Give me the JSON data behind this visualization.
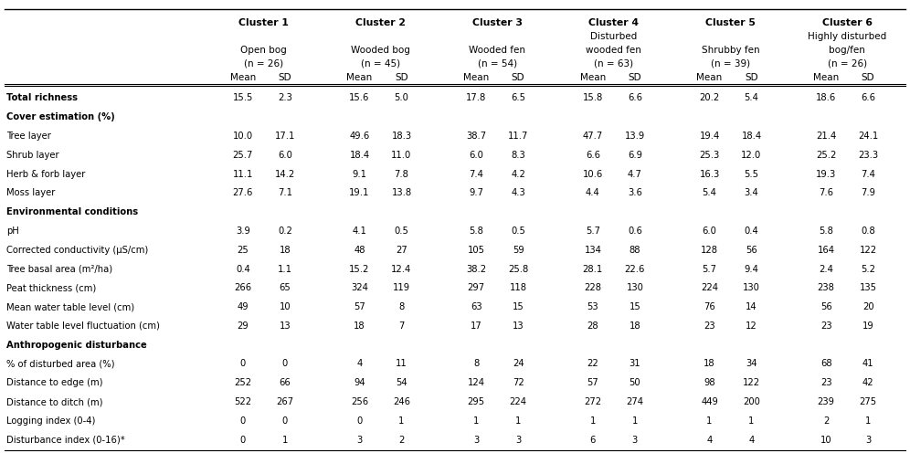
{
  "cluster_headers": [
    "Cluster 1",
    "Cluster 2",
    "Cluster 3",
    "Cluster 4",
    "Cluster 5",
    "Cluster 6"
  ],
  "cluster_line2": [
    "",
    "",
    "",
    "Disturbed",
    "",
    "Highly disturbed"
  ],
  "cluster_subheaders": [
    "Open bog",
    "Wooded bog",
    "Wooded fen",
    "wooded fen",
    "Shrubby fen",
    "bog/fen"
  ],
  "cluster_n": [
    "(n = 26)",
    "(n = 45)",
    "(n = 54)",
    "(n = 63)",
    "(n = 39)",
    "(n = 26)"
  ],
  "cluster4_bold": [
    false,
    false,
    false,
    true,
    false,
    false
  ],
  "row_categories": [
    {
      "label": "Total richness",
      "bold": true,
      "section_header": false
    },
    {
      "label": "Cover estimation (%)",
      "bold": true,
      "section_header": true
    },
    {
      "label": "Tree layer",
      "bold": false,
      "section_header": false
    },
    {
      "label": "Shrub layer",
      "bold": false,
      "section_header": false
    },
    {
      "label": "Herb & forb layer",
      "bold": false,
      "section_header": false
    },
    {
      "label": "Moss layer",
      "bold": false,
      "section_header": false
    },
    {
      "label": "Environmental conditions",
      "bold": true,
      "section_header": true
    },
    {
      "label": "pH",
      "bold": false,
      "section_header": false
    },
    {
      "label": "Corrected conductivity (μS/cm)",
      "bold": false,
      "section_header": false
    },
    {
      "label": "Tree basal area (m²/ha)",
      "bold": false,
      "section_header": false
    },
    {
      "label": "Peat thickness (cm)",
      "bold": false,
      "section_header": false
    },
    {
      "label": "Mean water table level (cm)",
      "bold": false,
      "section_header": false
    },
    {
      "label": "Water table level fluctuation (cm)",
      "bold": false,
      "section_header": false
    },
    {
      "label": "Anthropogenic disturbance",
      "bold": true,
      "section_header": true
    },
    {
      "label": "% of disturbed area (%)",
      "bold": false,
      "section_header": false
    },
    {
      "label": "Distance to edge (m)",
      "bold": false,
      "section_header": false
    },
    {
      "label": "Distance to ditch (m)",
      "bold": false,
      "section_header": false
    },
    {
      "label": "Logging index (0-4)",
      "bold": false,
      "section_header": false
    },
    {
      "label": "Disturbance index (0-16)*",
      "bold": false,
      "section_header": false
    }
  ],
  "data": [
    [
      "15.5",
      "2.3",
      "15.6",
      "5.0",
      "17.8",
      "6.5",
      "15.8",
      "6.6",
      "20.2",
      "5.4",
      "18.6",
      "6.6"
    ],
    [
      "",
      "",
      "",
      "",
      "",
      "",
      "",
      "",
      "",
      "",
      "",
      ""
    ],
    [
      "10.0",
      "17.1",
      "49.6",
      "18.3",
      "38.7",
      "11.7",
      "47.7",
      "13.9",
      "19.4",
      "18.4",
      "21.4",
      "24.1"
    ],
    [
      "25.7",
      "6.0",
      "18.4",
      "11.0",
      "6.0",
      "8.3",
      "6.6",
      "6.9",
      "25.3",
      "12.0",
      "25.2",
      "23.3"
    ],
    [
      "11.1",
      "14.2",
      "9.1",
      "7.8",
      "7.4",
      "4.2",
      "10.6",
      "4.7",
      "16.3",
      "5.5",
      "19.3",
      "7.4"
    ],
    [
      "27.6",
      "7.1",
      "19.1",
      "13.8",
      "9.7",
      "4.3",
      "4.4",
      "3.6",
      "5.4",
      "3.4",
      "7.6",
      "7.9"
    ],
    [
      "",
      "",
      "",
      "",
      "",
      "",
      "",
      "",
      "",
      "",
      "",
      ""
    ],
    [
      "3.9",
      "0.2",
      "4.1",
      "0.5",
      "5.8",
      "0.5",
      "5.7",
      "0.6",
      "6.0",
      "0.4",
      "5.8",
      "0.8"
    ],
    [
      "25",
      "18",
      "48",
      "27",
      "105",
      "59",
      "134",
      "88",
      "128",
      "56",
      "164",
      "122"
    ],
    [
      "0.4",
      "1.1",
      "15.2",
      "12.4",
      "38.2",
      "25.8",
      "28.1",
      "22.6",
      "5.7",
      "9.4",
      "2.4",
      "5.2"
    ],
    [
      "266",
      "65",
      "324",
      "119",
      "297",
      "118",
      "228",
      "130",
      "224",
      "130",
      "238",
      "135"
    ],
    [
      "49",
      "10",
      "57",
      "8",
      "63",
      "15",
      "53",
      "15",
      "76",
      "14",
      "56",
      "20"
    ],
    [
      "29",
      "13",
      "18",
      "7",
      "17",
      "13",
      "28",
      "18",
      "23",
      "12",
      "23",
      "19"
    ],
    [
      "",
      "",
      "",
      "",
      "",
      "",
      "",
      "",
      "",
      "",
      "",
      ""
    ],
    [
      "0",
      "0",
      "4",
      "11",
      "8",
      "24",
      "22",
      "31",
      "18",
      "34",
      "68",
      "41"
    ],
    [
      "252",
      "66",
      "94",
      "54",
      "124",
      "72",
      "57",
      "50",
      "98",
      "122",
      "23",
      "42"
    ],
    [
      "522",
      "267",
      "256",
      "246",
      "295",
      "224",
      "272",
      "274",
      "449",
      "200",
      "239",
      "275"
    ],
    [
      "0",
      "0",
      "0",
      "1",
      "1",
      "1",
      "1",
      "1",
      "1",
      "1",
      "2",
      "1"
    ],
    [
      "0",
      "1",
      "3",
      "2",
      "3",
      "3",
      "6",
      "3",
      "4",
      "4",
      "10",
      "3"
    ]
  ],
  "bg_color": "#ffffff",
  "text_color": "#000000"
}
